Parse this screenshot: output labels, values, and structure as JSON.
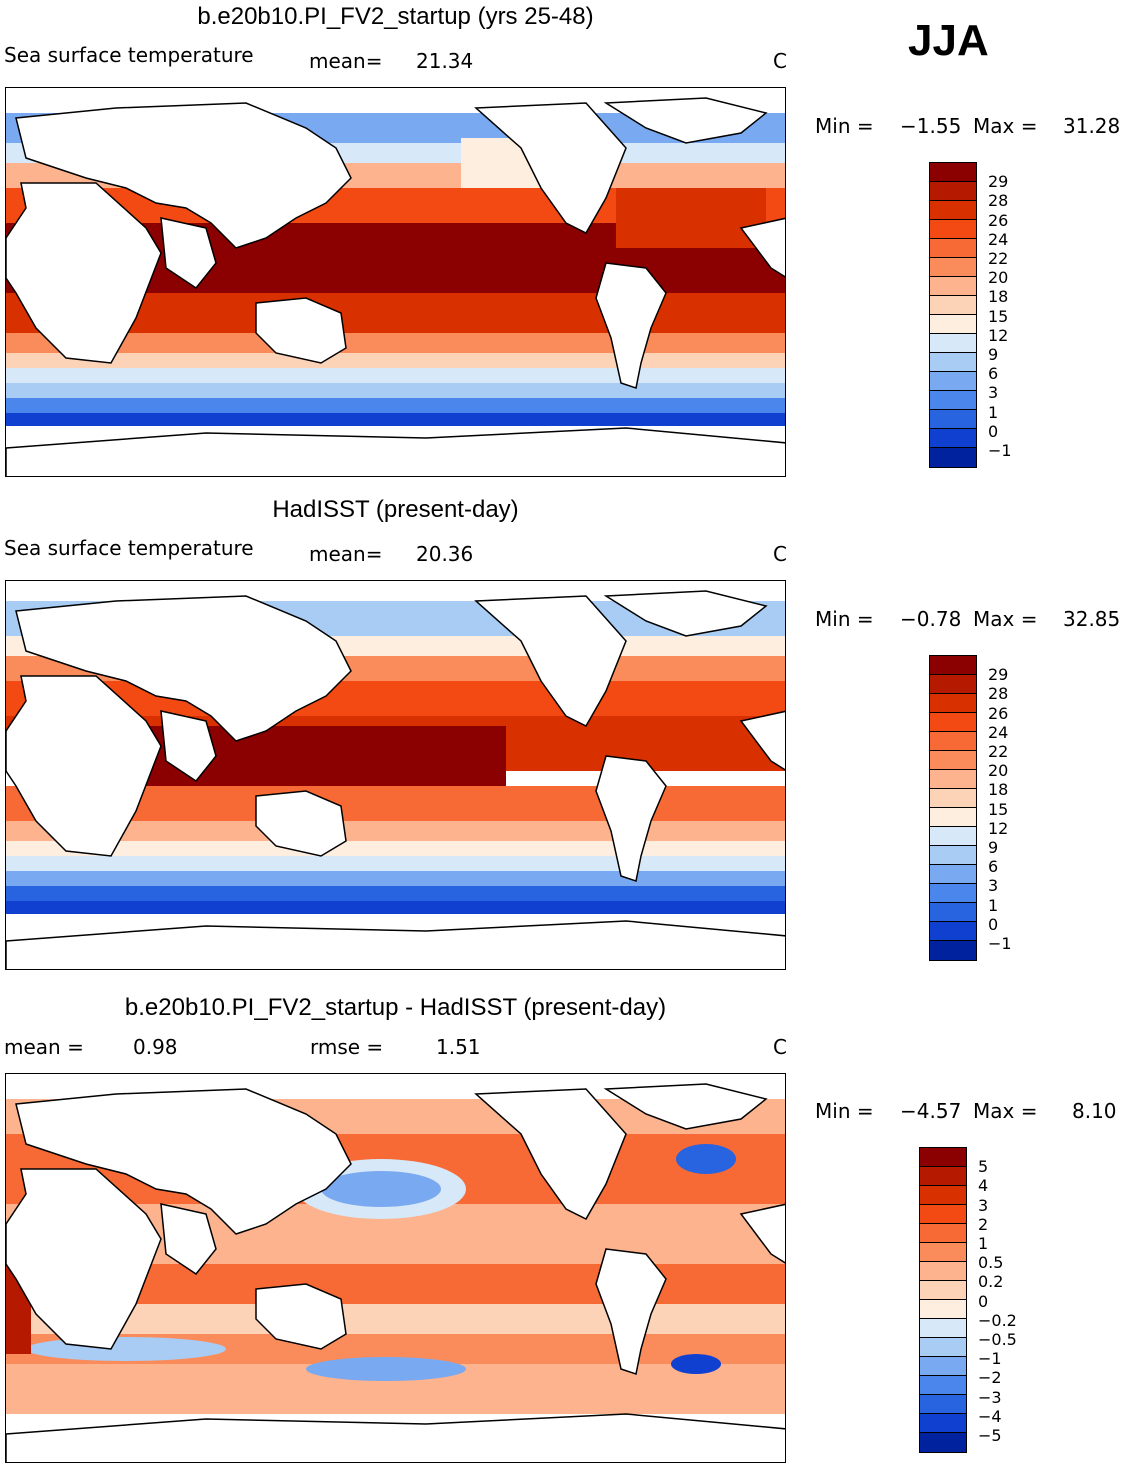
{
  "season": "JJA",
  "panels": [
    {
      "title": "b.e20b10.PI_FV2_startup (yrs 25-48)",
      "left_label": "Sea surface temperature",
      "mid_label": "mean=",
      "mid_value": "21.34",
      "right_label": "C",
      "min_label": "Min =",
      "min_value": "−1.55",
      "max_label": "Max =",
      "max_value": "31.28",
      "colorbar_levels": [
        "29",
        "28",
        "26",
        "24",
        "22",
        "20",
        "18",
        "15",
        "12",
        "9",
        "6",
        "3",
        "1",
        "0",
        "−1"
      ],
      "colorbar_colors": [
        "#8b0000",
        "#b51a00",
        "#d93000",
        "#f24a12",
        "#f86a35",
        "#fa8c5c",
        "#fcb38e",
        "#fdd3b8",
        "#fdeee0",
        "#d7e8f8",
        "#a8ccf4",
        "#79a9f0",
        "#4a86ec",
        "#2863e0",
        "#1040d0",
        "#00229f"
      ]
    },
    {
      "title": "HadISST (present-day)",
      "left_label": "Sea surface temperature",
      "mid_label": "mean=",
      "mid_value": "20.36",
      "right_label": "C",
      "min_label": "Min =",
      "min_value": "−0.78",
      "max_label": "Max =",
      "max_value": "32.85",
      "colorbar_levels": [
        "29",
        "28",
        "26",
        "24",
        "22",
        "20",
        "18",
        "15",
        "12",
        "9",
        "6",
        "3",
        "1",
        "0",
        "−1"
      ],
      "colorbar_colors": [
        "#8b0000",
        "#b51a00",
        "#d93000",
        "#f24a12",
        "#f86a35",
        "#fa8c5c",
        "#fcb38e",
        "#fdd3b8",
        "#fdeee0",
        "#d7e8f8",
        "#a8ccf4",
        "#79a9f0",
        "#4a86ec",
        "#2863e0",
        "#1040d0",
        "#00229f"
      ]
    },
    {
      "title": "b.e20b10.PI_FV2_startup - HadISST (present-day)",
      "left_label": "mean =",
      "left_value": "0.98",
      "mid_label": "rmse =",
      "mid_value": "1.51",
      "right_label": "C",
      "min_label": "Min =",
      "min_value": "−4.57",
      "max_label": "Max =",
      "max_value": "8.10",
      "colorbar_levels": [
        "5",
        "4",
        "3",
        "2",
        "1",
        "0.5",
        "0.2",
        "0",
        "−0.2",
        "−0.5",
        "−1",
        "−2",
        "−3",
        "−4",
        "−5"
      ],
      "colorbar_colors": [
        "#8b0000",
        "#b51a00",
        "#d93000",
        "#f24a12",
        "#f86a35",
        "#fa8c5c",
        "#fcb38e",
        "#fdd3b8",
        "#fdeee0",
        "#d7e8f8",
        "#a8ccf4",
        "#79a9f0",
        "#4a86ec",
        "#2863e0",
        "#1040d0",
        "#00229f"
      ]
    }
  ]
}
